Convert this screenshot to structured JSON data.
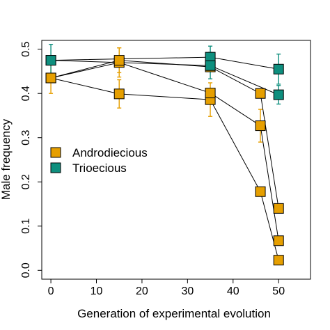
{
  "chart_data": {
    "type": "scatter",
    "xlabel": "Generation of experimental evolution",
    "ylabel": "Male frequency",
    "xlim": [
      -2,
      57
    ],
    "ylim": [
      -0.02,
      0.52
    ],
    "xticks": [
      "0",
      "10",
      "20",
      "30",
      "40",
      "50"
    ],
    "yticks": [
      "0.0",
      "0.1",
      "0.2",
      "0.3",
      "0.4",
      "0.5"
    ],
    "legend_position": "left-middle",
    "grid": false,
    "colors": {
      "Androdiecious": "#E69F00",
      "Trioecious": "#0E8F7E"
    },
    "series": [
      {
        "name": "Androdiecious",
        "color": "#E69F00",
        "lines": [
          {
            "x": [
              0,
              15,
              35,
              46,
              50
            ],
            "y": [
              0.435,
              0.399,
              0.386,
              0.178,
              0.023
            ],
            "err": [
              0.035,
              0.032,
              0.038,
              0.0,
              0.0
            ]
          },
          {
            "x": [
              0,
              15,
              35,
              46,
              50
            ],
            "y": [
              0.435,
              0.47,
              0.401,
              0.327,
              0.067
            ],
            "err": [
              0.0,
              0.033,
              0.0,
              0.037,
              0.0
            ]
          },
          {
            "x": [
              0,
              15,
              35,
              46,
              50
            ],
            "y": [
              0.435,
              0.475,
              0.46,
              0.4,
              0.14
            ],
            "err": [
              0.0,
              0.028,
              0.0,
              0.0,
              0.0
            ]
          }
        ]
      },
      {
        "name": "Trioecious",
        "color": "#0E8F7E",
        "lines": [
          {
            "x": [
              0,
              35,
              50
            ],
            "y": [
              0.475,
              0.482,
              0.455
            ],
            "err": [
              0.036,
              0.025,
              0.034
            ]
          },
          {
            "x": [
              0,
              35,
              50
            ],
            "y": [
              0.475,
              0.463,
              0.397
            ],
            "err": [
              0.0,
              0.03,
              0.021
            ]
          }
        ]
      }
    ]
  }
}
